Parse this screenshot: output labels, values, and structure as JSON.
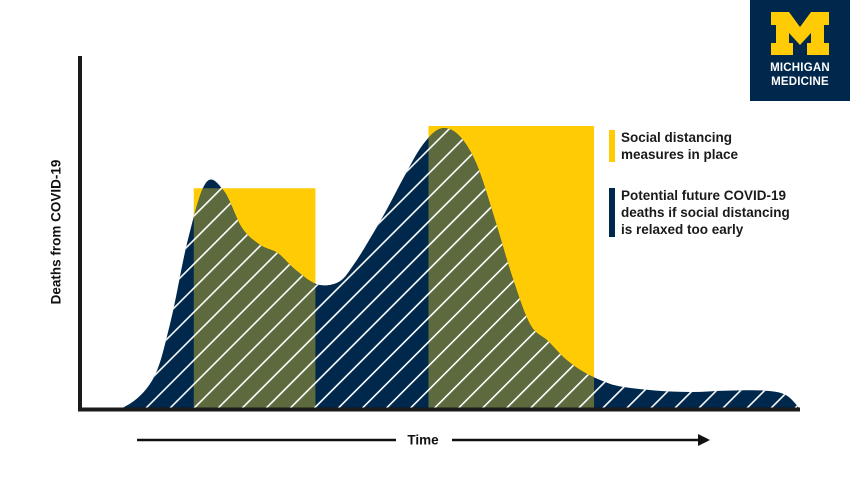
{
  "chart_data": {
    "type": "area",
    "title": "",
    "xlabel": "Time",
    "ylabel": "Deaths from COVID-19",
    "xlim": [
      0,
      100
    ],
    "ylim": [
      0,
      100
    ],
    "grid": false,
    "legend_placement": "right",
    "series": [
      {
        "name": "Potential future COVID-19 deaths if social distancing is relaxed too early",
        "style": "navy area with diagonal white hatching",
        "x": [
          0,
          5.5,
          10,
          12.5,
          15,
          17.5,
          20,
          22.5,
          25,
          27.5,
          30,
          33,
          36,
          38,
          40,
          42.5,
          45,
          47.5,
          50,
          52.5,
          55,
          57.5,
          60,
          62.5,
          65,
          67.5,
          70,
          72.5,
          75,
          80,
          85,
          90,
          95,
          98,
          100
        ],
        "values": [
          0,
          0,
          10,
          30,
          60,
          80,
          77,
          64,
          58,
          55,
          49,
          44,
          45,
          51,
          59,
          70,
          82,
          93,
          99,
          97,
          87,
          68,
          47,
          30,
          24,
          17.5,
          13,
          10,
          8,
          6.5,
          6,
          6.5,
          6.5,
          5,
          0
        ]
      },
      {
        "name": "",
        "style": "olive area with diagonal white hatching",
        "x": [
          0,
          5.5,
          10,
          12.5,
          15,
          17.5,
          20,
          22.5,
          25,
          27.5,
          30,
          33,
          36,
          38,
          40,
          42.5,
          45,
          47.5,
          50,
          52.5,
          55,
          57.5,
          60,
          62.5,
          65,
          67.5,
          70,
          72.5,
          75,
          80,
          85,
          90,
          95,
          98,
          100
        ],
        "values": [
          0,
          0,
          10,
          30,
          60,
          80,
          77,
          64,
          58,
          55,
          49,
          44,
          45,
          51,
          59,
          70,
          82,
          93,
          99,
          97,
          87,
          68,
          47,
          30,
          24,
          17.5,
          13,
          10,
          8,
          6.5,
          6,
          6.5,
          6.5,
          5,
          0
        ]
      }
    ],
    "bands": [
      {
        "label": "Social distancing measures in place",
        "x_start": 15.8,
        "x_end": 32.7,
        "height": 78
      },
      {
        "label": "Social distancing measures in place",
        "x_start": 48.4,
        "x_end": 71.4,
        "height": 100
      }
    ],
    "legend": [
      {
        "label_lines": [
          "Social distancing",
          "measures in place"
        ],
        "color": "#ffcb05"
      },
      {
        "label_lines": [
          "Potential future COVID-19",
          "deaths if social distancing",
          "is relaxed too early"
        ],
        "color": "#00274c"
      }
    ]
  },
  "logo": {
    "name": "michigan-medicine-logo",
    "lines": [
      "MICHIGAN",
      "MEDICINE"
    ],
    "bg_color": "#00274c",
    "mark_color": "#ffcb05"
  },
  "colors": {
    "maize": "#ffcb05",
    "navy": "#00274c",
    "olive": "#5c6a3e",
    "axis": "#1a1a1a"
  }
}
